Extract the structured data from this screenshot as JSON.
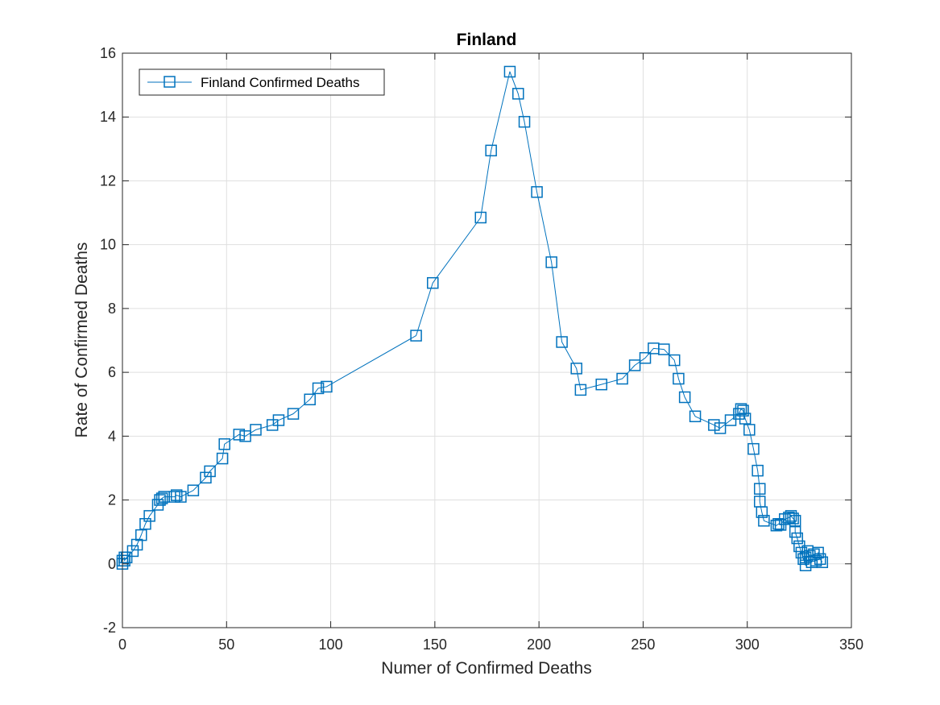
{
  "chart_data": {
    "type": "line",
    "title": "Finland",
    "xlabel": "Numer of Confirmed Deaths",
    "ylabel": "Rate of Confirmed Deaths",
    "xlim": [
      0,
      350
    ],
    "ylim": [
      -2,
      16
    ],
    "xticks": [
      0,
      50,
      100,
      150,
      200,
      250,
      300,
      350
    ],
    "yticks": [
      -2,
      0,
      2,
      4,
      6,
      8,
      10,
      12,
      14,
      16
    ],
    "grid": true,
    "legend_position": "top-left",
    "series": [
      {
        "name": "Finland Confirmed Deaths",
        "color": "#0072BD",
        "marker": "square",
        "x": [
          0,
          0,
          1,
          1,
          2,
          5,
          7,
          9,
          11,
          13,
          17,
          18,
          19,
          20,
          25,
          26,
          28,
          34,
          40,
          42,
          48,
          49,
          56,
          59,
          64,
          72,
          75,
          82,
          90,
          94,
          98,
          141,
          149,
          172,
          177,
          186,
          190,
          193,
          199,
          206,
          211,
          218,
          220,
          230,
          240,
          246,
          251,
          255,
          260,
          265,
          267,
          270,
          275,
          284,
          287,
          292,
          296,
          297,
          298,
          299,
          301,
          303,
          305,
          306,
          306,
          307,
          308,
          314,
          315,
          316,
          318,
          320,
          321,
          322,
          323,
          323,
          324,
          325,
          326,
          327,
          328,
          328,
          329,
          330,
          331,
          332,
          333,
          334,
          335,
          336
        ],
        "y": [
          0,
          0.1,
          0.2,
          0.1,
          0.2,
          0.4,
          0.6,
          0.9,
          1.25,
          1.5,
          1.85,
          2.0,
          2.05,
          2.1,
          2.1,
          2.15,
          2.1,
          2.3,
          2.7,
          2.9,
          3.3,
          3.75,
          4.05,
          4.0,
          4.2,
          4.35,
          4.5,
          4.7,
          5.15,
          5.5,
          5.55,
          7.15,
          8.8,
          10.85,
          12.95,
          15.42,
          14.73,
          13.85,
          11.65,
          9.45,
          6.95,
          6.12,
          5.45,
          5.62,
          5.8,
          6.22,
          6.45,
          6.75,
          6.72,
          6.38,
          5.8,
          5.22,
          4.62,
          4.35,
          4.25,
          4.5,
          4.7,
          4.85,
          4.8,
          4.55,
          4.2,
          3.6,
          2.92,
          2.35,
          1.95,
          1.62,
          1.35,
          1.2,
          1.25,
          1.22,
          1.4,
          1.45,
          1.5,
          1.42,
          1.35,
          1.0,
          0.8,
          0.55,
          0.35,
          0.15,
          -0.05,
          0.2,
          0.4,
          0.25,
          0.05,
          0.3,
          0.1,
          0.35,
          0.15,
          0.05
        ]
      }
    ]
  }
}
